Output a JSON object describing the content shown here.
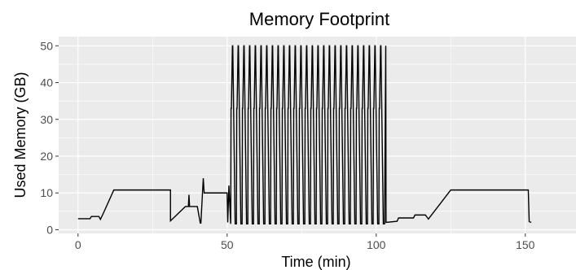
{
  "chart_data": {
    "type": "line",
    "title": "Memory Footprint",
    "xlabel": "Time (min)",
    "ylabel": "Used Memory (GB)",
    "xlim": [
      -6.5,
      167
    ],
    "ylim": [
      -1,
      52.5
    ],
    "x_ticks": [
      0,
      50,
      100,
      150
    ],
    "x_tick_labels": [
      "0",
      "50",
      "100",
      "150"
    ],
    "y_ticks": [
      0,
      10,
      20,
      30,
      40,
      50
    ],
    "y_tick_labels": [
      "0",
      "10",
      "20",
      "30",
      "40",
      "50"
    ],
    "x_minor_ticks": [
      25,
      75,
      125
    ],
    "y_minor_ticks": [
      5,
      15,
      25,
      35,
      45
    ],
    "grid": true,
    "legend": "none",
    "colors": {
      "panel": "#ebebeb",
      "grid": "#ffffff",
      "line": "#000000",
      "tick_text": "#4d4d4d"
    },
    "series": [
      {
        "x": [
          0,
          4,
          4.5,
          7,
          7.5,
          8.5,
          12,
          31,
          31,
          36,
          37,
          37.2,
          37.4,
          40,
          41,
          41.2,
          42,
          42.3,
          42.5,
          50,
          50.2,
          50.6,
          51.2,
          102.8,
          103.2,
          103.3,
          107,
          107.5,
          112.5,
          113,
          116.5,
          117.5,
          125,
          151,
          151.3,
          152
        ],
        "y": [
          3,
          3,
          3.6,
          3.6,
          2.8,
          4.5,
          10.8,
          10.8,
          2.4,
          6.3,
          6.3,
          9.5,
          6.3,
          6.3,
          1.8,
          1.8,
          14,
          10,
          10,
          10,
          2,
          12,
          1.6,
          1.6,
          50,
          2,
          2.3,
          3.2,
          3.2,
          4,
          4,
          2.9,
          10.8,
          10.8,
          2.2,
          2
        ],
        "oscillation": {
          "start": 51.2,
          "end": 102.8,
          "cycles": 27,
          "peak": 50,
          "shoulder": 33,
          "trough": 1.6
        }
      }
    ]
  }
}
